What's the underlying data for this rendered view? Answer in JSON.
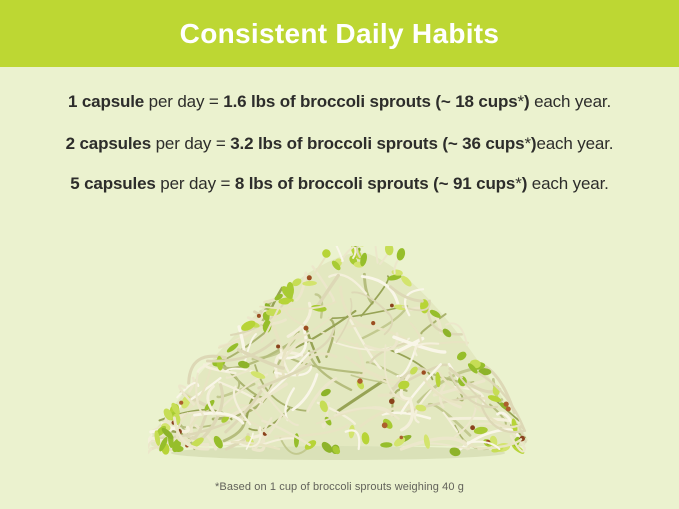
{
  "page": {
    "background_color": "#ebf2cf"
  },
  "header": {
    "title": "Consistent Daily Habits",
    "background_color": "#bdd733",
    "text_color": "#ffffff"
  },
  "stats": {
    "lines": [
      {
        "segments": [
          {
            "t": "1 capsule",
            "bold": true
          },
          {
            "t": " per day = ",
            "bold": false
          },
          {
            "t": "1.6 lbs of broccoli sprouts (~ 18 cups",
            "bold": true
          },
          {
            "t": "*",
            "bold": false
          },
          {
            "t": ")",
            "bold": true
          },
          {
            "t": " each year.",
            "bold": false
          }
        ]
      },
      {
        "segments": [
          {
            "t": "2 capsules",
            "bold": true
          },
          {
            "t": " per day = ",
            "bold": false
          },
          {
            "t": "3.2 lbs of broccoli sprouts (~ 36 cups",
            "bold": true
          },
          {
            "t": "*",
            "bold": false
          },
          {
            "t": ")",
            "bold": true
          },
          {
            "t": "each year.",
            "bold": false
          }
        ]
      },
      {
        "segments": [
          {
            "t": "5 capsules",
            "bold": true
          },
          {
            "t": " per day = ",
            "bold": false
          },
          {
            "t": "8 lbs of broccoli sprouts (~ 91 cups",
            "bold": true
          },
          {
            "t": "*",
            "bold": false
          },
          {
            "t": ")",
            "bold": true
          },
          {
            "t": " each year.",
            "bold": false
          }
        ]
      }
    ]
  },
  "figure": {
    "alt": "Pile of fresh broccoli sprouts",
    "base_color": "#e3e8c0",
    "shade_colors": [
      "#aab36e",
      "#97a355",
      "#c2c98f",
      "#b5bd7d"
    ],
    "stem_colors": [
      "#f4f0db",
      "#ece7cb",
      "#f9f6e8",
      "#ddd8b6",
      "#e8e4c2"
    ],
    "leaf_colors": [
      "#b7d437",
      "#a8cb33",
      "#c6dd55",
      "#96be2b",
      "#d3e46d",
      "#8db32a"
    ],
    "seed_colors": [
      "#9c4e21",
      "#8a421c",
      "#ad5f2e"
    ],
    "shadow_color": "#ccd3a6"
  },
  "footnote": {
    "text": "*Based on 1 cup of broccoli sprouts weighing 40 g"
  }
}
